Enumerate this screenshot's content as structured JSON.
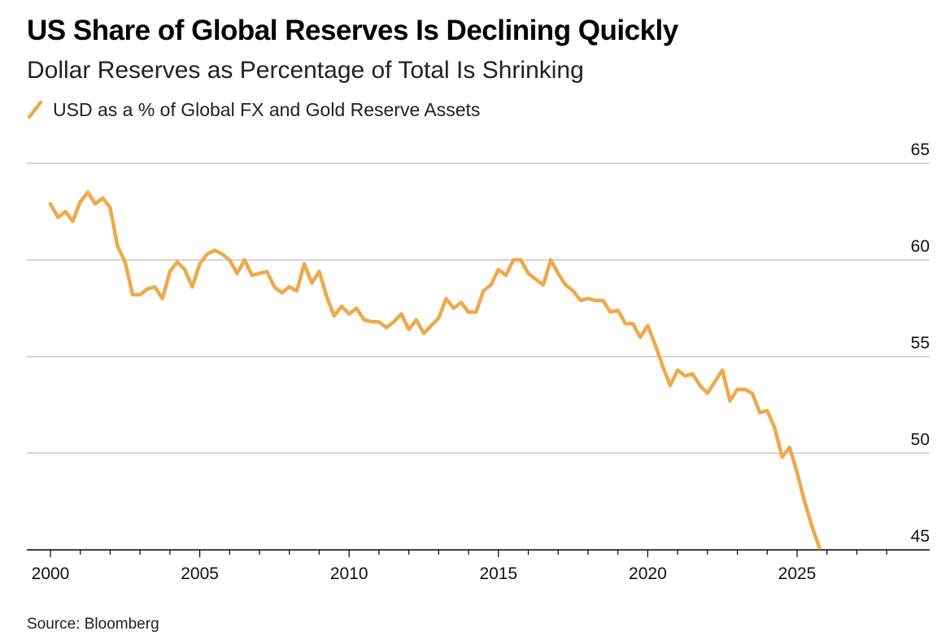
{
  "chart_data": {
    "type": "line",
    "title": "US Share of Global Reserves Is Declining Quickly",
    "subtitle": "Dollar Reserves as Percentage of Total Is Shrinking",
    "source": "Source: Bloomberg",
    "legend_position": "top-left",
    "grid": "horizontal",
    "xlim": [
      1999.2,
      2028.8
    ],
    "ylim": [
      45,
      65
    ],
    "x_ticks": [
      "2000",
      "2005",
      "2010",
      "2015",
      "2020",
      "2025"
    ],
    "y_ticks": [
      "65",
      "60",
      "55",
      "50",
      "45"
    ],
    "colors": {
      "series": "#EFA94A",
      "grid": "#c8c8c8",
      "axis": "#000000"
    },
    "series": [
      {
        "name": "USD as a % of Global FX and Gold Reserve Assets",
        "x": [
          2000.0,
          2000.25,
          2000.5,
          2000.75,
          2001.0,
          2001.25,
          2001.5,
          2001.75,
          2002.0,
          2002.25,
          2002.5,
          2002.75,
          2003.0,
          2003.25,
          2003.5,
          2003.75,
          2004.0,
          2004.25,
          2004.5,
          2004.75,
          2005.0,
          2005.25,
          2005.5,
          2005.75,
          2006.0,
          2006.25,
          2006.5,
          2006.75,
          2007.0,
          2007.25,
          2007.5,
          2007.75,
          2008.0,
          2008.25,
          2008.5,
          2008.75,
          2009.0,
          2009.25,
          2009.5,
          2009.75,
          2010.0,
          2010.25,
          2010.5,
          2010.75,
          2011.0,
          2011.25,
          2011.5,
          2011.75,
          2012.0,
          2012.25,
          2012.5,
          2012.75,
          2013.0,
          2013.25,
          2013.5,
          2013.75,
          2014.0,
          2014.25,
          2014.5,
          2014.75,
          2015.0,
          2015.25,
          2015.5,
          2015.75,
          2016.0,
          2016.25,
          2016.5,
          2016.75,
          2017.0,
          2017.25,
          2017.5,
          2017.75,
          2018.0,
          2018.25,
          2018.5,
          2018.75,
          2019.0,
          2019.25,
          2019.5,
          2019.75,
          2020.0,
          2020.25,
          2020.5,
          2020.75,
          2021.0,
          2021.25,
          2021.5,
          2021.75,
          2022.0,
          2022.25,
          2022.5,
          2022.75,
          2023.0,
          2023.25,
          2023.5,
          2023.75,
          2024.0,
          2024.25,
          2024.5,
          2024.75,
          2025.0,
          2025.25,
          2025.5,
          2025.75
        ],
        "y": [
          62.9,
          62.2,
          62.5,
          62.0,
          63.0,
          63.5,
          62.9,
          63.2,
          62.7,
          60.7,
          59.9,
          58.2,
          58.2,
          58.5,
          58.6,
          58.0,
          59.4,
          59.9,
          59.5,
          58.6,
          59.8,
          60.3,
          60.5,
          60.3,
          60.0,
          59.3,
          60.0,
          59.2,
          59.3,
          59.4,
          58.6,
          58.3,
          58.6,
          58.4,
          59.8,
          58.8,
          59.4,
          58.1,
          57.1,
          57.6,
          57.2,
          57.5,
          56.9,
          56.8,
          56.8,
          56.5,
          56.8,
          57.2,
          56.4,
          56.9,
          56.2,
          56.6,
          57.0,
          58.0,
          57.5,
          57.8,
          57.3,
          57.3,
          58.4,
          58.7,
          59.5,
          59.2,
          60.0,
          60.0,
          59.3,
          59.0,
          58.7,
          60.0,
          59.3,
          58.7,
          58.4,
          57.9,
          58.0,
          57.9,
          57.9,
          57.3,
          57.4,
          56.7,
          56.7,
          56.0,
          56.6,
          55.6,
          54.5,
          53.5,
          54.3,
          54.0,
          54.1,
          53.5,
          53.1,
          53.7,
          54.3,
          52.7,
          53.3,
          53.3,
          53.1,
          52.1,
          52.2,
          51.3,
          49.8,
          50.3,
          49.0,
          47.5,
          46.2,
          45.1
        ]
      }
    ]
  }
}
